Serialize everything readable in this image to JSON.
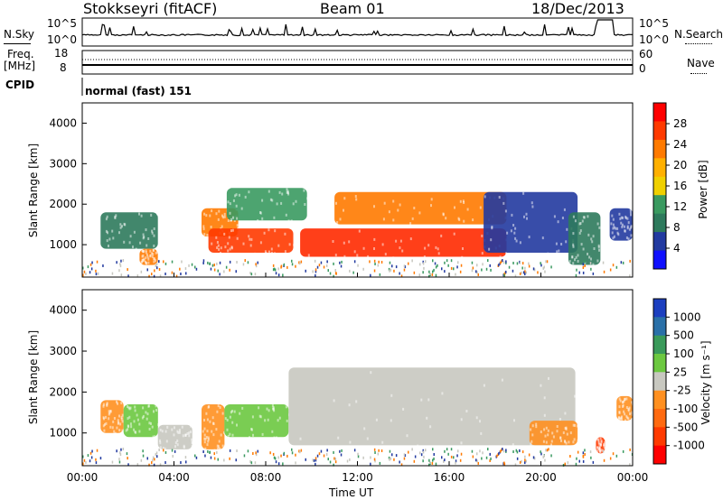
{
  "header": {
    "station": "Stokkseyri (fitACF)",
    "beam": "Beam 01",
    "date": "18/Dec/2013"
  },
  "strip_panels": {
    "nsky_label": "N.Sky",
    "nsky_ticks": [
      "10^5",
      "10^0"
    ],
    "nsearch_label": "N.Search",
    "nsearch_ticks": [
      "10^5",
      "10^0"
    ],
    "freq_label": "Freq.",
    "freq_unit": "[MHz]",
    "freq_ticks": [
      "18",
      "8"
    ],
    "nave_label": "Nave",
    "nave_ticks": [
      "60",
      "0"
    ],
    "cpid_label": "CPID",
    "cpid_value": "normal (fast) 151"
  },
  "power_colorbar": {
    "label": "Power [dB]",
    "ticks": [
      "28",
      "24",
      "20",
      "16",
      "12",
      "8",
      "4"
    ],
    "colors": [
      "#ff0000",
      "#ff3a00",
      "#ff7a00",
      "#ffb000",
      "#f0d000",
      "#3a9a60",
      "#2e7a5c",
      "#223aa0",
      "#1010ff"
    ]
  },
  "velocity_colorbar": {
    "label": "Velocity [m s⁻¹]",
    "ticks": [
      "1000",
      "500",
      "100",
      "25",
      "-25",
      "-100",
      "-500",
      "-1000"
    ],
    "colors": [
      "#1c3fbf",
      "#2a70a8",
      "#3a9a5a",
      "#6cc840",
      "#c8c8c0",
      "#ff9020",
      "#ff6a10",
      "#ff3a00",
      "#ff0000"
    ]
  },
  "chart_data": [
    {
      "type": "heatmap",
      "title": "Power",
      "ylabel": "Slant Range [km]",
      "xlabel": "Time UT",
      "x_ticks": [
        "00:00",
        "04:00",
        "08:00",
        "12:00",
        "16:00",
        "20:00",
        "00:00"
      ],
      "y_ticks": [
        1000,
        2000,
        3000,
        4000
      ],
      "xlim": [
        "00:00",
        "24:00"
      ],
      "ylim": [
        200,
        4500
      ],
      "unit": "dB",
      "patches": [
        {
          "t": [
            0.8,
            3.3
          ],
          "range": [
            900,
            1800
          ],
          "level": "8-12"
        },
        {
          "t": [
            2.5,
            3.3
          ],
          "range": [
            500,
            900
          ],
          "level": "16-28"
        },
        {
          "t": [
            5.2,
            6.8
          ],
          "range": [
            1200,
            1900
          ],
          "level": "16-28"
        },
        {
          "t": [
            5.5,
            9.2
          ],
          "range": [
            800,
            1400
          ],
          "level": "20-28"
        },
        {
          "t": [
            6.3,
            9.8
          ],
          "range": [
            1600,
            2400
          ],
          "level": "4-16"
        },
        {
          "t": [
            9.5,
            18.5
          ],
          "range": [
            700,
            1400
          ],
          "level": "24-28"
        },
        {
          "t": [
            11,
            18.5
          ],
          "range": [
            1500,
            2300
          ],
          "level": "16-28"
        },
        {
          "t": [
            17.5,
            21.6
          ],
          "range": [
            800,
            2300
          ],
          "level": "4-12"
        },
        {
          "t": [
            21.2,
            22.6
          ],
          "range": [
            500,
            1800
          ],
          "level": "8-12"
        },
        {
          "t": [
            23,
            24
          ],
          "range": [
            1100,
            1900
          ],
          "level": "4-12"
        }
      ]
    },
    {
      "type": "heatmap",
      "title": "Velocity",
      "ylabel": "Slant Range [km]",
      "xlabel": "Time UT",
      "x_ticks": [
        "00:00",
        "04:00",
        "08:00",
        "12:00",
        "16:00",
        "20:00",
        "00:00"
      ],
      "y_ticks": [
        1000,
        2000,
        3000,
        4000
      ],
      "xlim": [
        "00:00",
        "24:00"
      ],
      "ylim": [
        200,
        4500
      ],
      "unit": "m s^-1",
      "patches": [
        {
          "t": [
            0.8,
            1.8
          ],
          "range": [
            1000,
            1800
          ],
          "level": "-100 to -500"
        },
        {
          "t": [
            1.8,
            3.3
          ],
          "range": [
            900,
            1700
          ],
          "level": "25 to 100"
        },
        {
          "t": [
            3.3,
            4.8
          ],
          "range": [
            600,
            1200
          ],
          "level": "-25 to 25"
        },
        {
          "t": [
            5.2,
            6.2
          ],
          "range": [
            600,
            1700
          ],
          "level": "-100 to -500"
        },
        {
          "t": [
            6.2,
            9.0
          ],
          "range": [
            900,
            1700
          ],
          "level": "25 to 100"
        },
        {
          "t": [
            9.0,
            21.5
          ],
          "range": [
            700,
            2600
          ],
          "level": "-25 to 25"
        },
        {
          "t": [
            19.5,
            21.6
          ],
          "range": [
            700,
            1300
          ],
          "level": "-100 to -500"
        },
        {
          "t": [
            22.4,
            22.8
          ],
          "range": [
            500,
            900
          ],
          "level": "-500 to -1000"
        },
        {
          "t": [
            23.3,
            24
          ],
          "range": [
            1300,
            1900
          ],
          "level": "-100 to -500"
        }
      ]
    }
  ]
}
